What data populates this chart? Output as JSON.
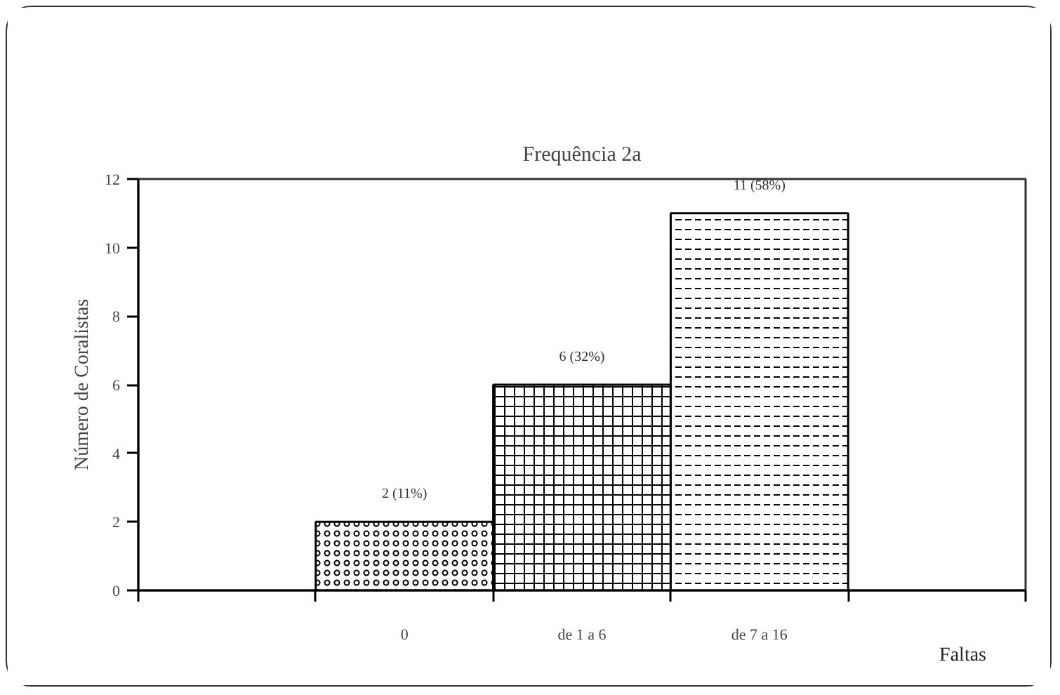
{
  "chart_data": {
    "type": "bar",
    "title": "Frequência 2a",
    "xlabel": "Faltas",
    "ylabel": "Número de Coralistas",
    "categories": [
      null,
      "0",
      "de 1 a 6",
      "de 7 a 16",
      null
    ],
    "values": [
      null,
      2,
      6,
      11,
      null
    ],
    "value_labels": [
      null,
      "2 (11%)",
      "6 (32%)",
      "11 (58%)",
      null
    ],
    "color": "#000000",
    "ylim": [
      0,
      12
    ],
    "yticks": [
      0,
      2,
      4,
      6,
      8,
      10,
      12
    ],
    "grid": false
  }
}
